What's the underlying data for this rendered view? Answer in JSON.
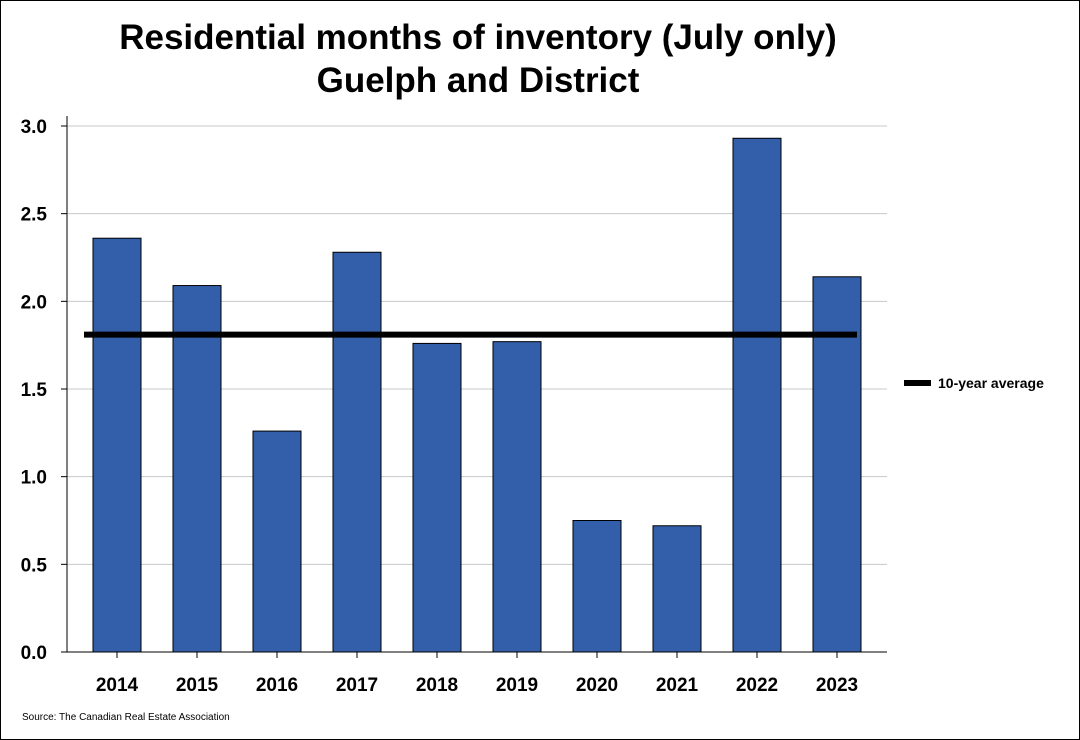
{
  "chart_data": {
    "type": "bar",
    "title_lines": [
      "Residential months of inventory (July only)",
      "Guelph and District"
    ],
    "categories": [
      "2014",
      "2015",
      "2016",
      "2017",
      "2018",
      "2019",
      "2020",
      "2021",
      "2022",
      "2023"
    ],
    "series": [
      {
        "name": "Months of inventory",
        "values": [
          2.36,
          2.09,
          1.26,
          2.28,
          1.76,
          1.77,
          0.75,
          0.72,
          2.93,
          2.14
        ],
        "color": "#335eaa"
      }
    ],
    "reference_line": {
      "name": "10-year average",
      "value": 1.81,
      "color": "#000000"
    },
    "xlabel": "",
    "ylabel": "",
    "ylim": [
      0,
      3.0
    ],
    "yticks": [
      0,
      0.5,
      1.0,
      1.5,
      2.0,
      2.5,
      3.0
    ],
    "ytick_labels": [
      "0.0",
      "0.5",
      "1.0",
      "1.5",
      "2.0",
      "2.5",
      "3.0"
    ],
    "grid": true,
    "legend": {
      "position": "right",
      "entries": [
        "10-year average"
      ]
    }
  },
  "source": "Source: The Canadian Real Estate Association"
}
